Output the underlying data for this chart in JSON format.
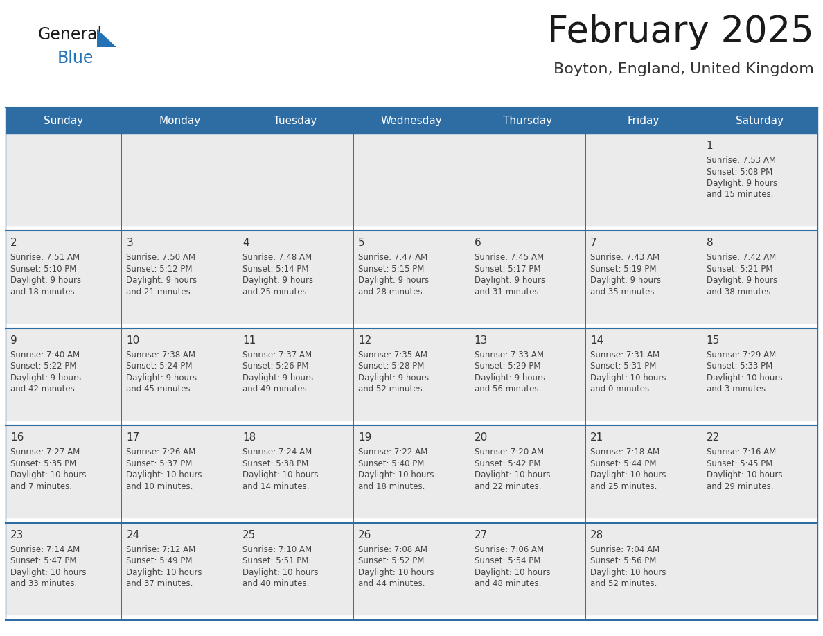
{
  "title": "February 2025",
  "subtitle": "Boyton, England, United Kingdom",
  "header_bg": "#2E6DA4",
  "header_text_color": "#FFFFFF",
  "cell_bg": "#EBEBEB",
  "cell_bg_empty": "#FFFFFF",
  "day_number_color": "#333333",
  "cell_text_color": "#444444",
  "border_color": "#2E6DA4",
  "row_separator_color": "#FFFFFF",
  "days_of_week": [
    "Sunday",
    "Monday",
    "Tuesday",
    "Wednesday",
    "Thursday",
    "Friday",
    "Saturday"
  ],
  "logo_general_color": "#1a1a1a",
  "logo_blue_color": "#2272B5",
  "title_color": "#1a1a1a",
  "subtitle_color": "#333333",
  "calendar_data": [
    [
      null,
      null,
      null,
      null,
      null,
      null,
      {
        "day": 1,
        "sunrise": "7:53 AM",
        "sunset": "5:08 PM",
        "daylight": "9 hours and 15 minutes."
      }
    ],
    [
      {
        "day": 2,
        "sunrise": "7:51 AM",
        "sunset": "5:10 PM",
        "daylight": "9 hours and 18 minutes."
      },
      {
        "day": 3,
        "sunrise": "7:50 AM",
        "sunset": "5:12 PM",
        "daylight": "9 hours and 21 minutes."
      },
      {
        "day": 4,
        "sunrise": "7:48 AM",
        "sunset": "5:14 PM",
        "daylight": "9 hours and 25 minutes."
      },
      {
        "day": 5,
        "sunrise": "7:47 AM",
        "sunset": "5:15 PM",
        "daylight": "9 hours and 28 minutes."
      },
      {
        "day": 6,
        "sunrise": "7:45 AM",
        "sunset": "5:17 PM",
        "daylight": "9 hours and 31 minutes."
      },
      {
        "day": 7,
        "sunrise": "7:43 AM",
        "sunset": "5:19 PM",
        "daylight": "9 hours and 35 minutes."
      },
      {
        "day": 8,
        "sunrise": "7:42 AM",
        "sunset": "5:21 PM",
        "daylight": "9 hours and 38 minutes."
      }
    ],
    [
      {
        "day": 9,
        "sunrise": "7:40 AM",
        "sunset": "5:22 PM",
        "daylight": "9 hours and 42 minutes."
      },
      {
        "day": 10,
        "sunrise": "7:38 AM",
        "sunset": "5:24 PM",
        "daylight": "9 hours and 45 minutes."
      },
      {
        "day": 11,
        "sunrise": "7:37 AM",
        "sunset": "5:26 PM",
        "daylight": "9 hours and 49 minutes."
      },
      {
        "day": 12,
        "sunrise": "7:35 AM",
        "sunset": "5:28 PM",
        "daylight": "9 hours and 52 minutes."
      },
      {
        "day": 13,
        "sunrise": "7:33 AM",
        "sunset": "5:29 PM",
        "daylight": "9 hours and 56 minutes."
      },
      {
        "day": 14,
        "sunrise": "7:31 AM",
        "sunset": "5:31 PM",
        "daylight": "10 hours and 0 minutes."
      },
      {
        "day": 15,
        "sunrise": "7:29 AM",
        "sunset": "5:33 PM",
        "daylight": "10 hours and 3 minutes."
      }
    ],
    [
      {
        "day": 16,
        "sunrise": "7:27 AM",
        "sunset": "5:35 PM",
        "daylight": "10 hours and 7 minutes."
      },
      {
        "day": 17,
        "sunrise": "7:26 AM",
        "sunset": "5:37 PM",
        "daylight": "10 hours and 10 minutes."
      },
      {
        "day": 18,
        "sunrise": "7:24 AM",
        "sunset": "5:38 PM",
        "daylight": "10 hours and 14 minutes."
      },
      {
        "day": 19,
        "sunrise": "7:22 AM",
        "sunset": "5:40 PM",
        "daylight": "10 hours and 18 minutes."
      },
      {
        "day": 20,
        "sunrise": "7:20 AM",
        "sunset": "5:42 PM",
        "daylight": "10 hours and 22 minutes."
      },
      {
        "day": 21,
        "sunrise": "7:18 AM",
        "sunset": "5:44 PM",
        "daylight": "10 hours and 25 minutes."
      },
      {
        "day": 22,
        "sunrise": "7:16 AM",
        "sunset": "5:45 PM",
        "daylight": "10 hours and 29 minutes."
      }
    ],
    [
      {
        "day": 23,
        "sunrise": "7:14 AM",
        "sunset": "5:47 PM",
        "daylight": "10 hours and 33 minutes."
      },
      {
        "day": 24,
        "sunrise": "7:12 AM",
        "sunset": "5:49 PM",
        "daylight": "10 hours and 37 minutes."
      },
      {
        "day": 25,
        "sunrise": "7:10 AM",
        "sunset": "5:51 PM",
        "daylight": "10 hours and 40 minutes."
      },
      {
        "day": 26,
        "sunrise": "7:08 AM",
        "sunset": "5:52 PM",
        "daylight": "10 hours and 44 minutes."
      },
      {
        "day": 27,
        "sunrise": "7:06 AM",
        "sunset": "5:54 PM",
        "daylight": "10 hours and 48 minutes."
      },
      {
        "day": 28,
        "sunrise": "7:04 AM",
        "sunset": "5:56 PM",
        "daylight": "10 hours and 52 minutes."
      },
      null
    ]
  ]
}
